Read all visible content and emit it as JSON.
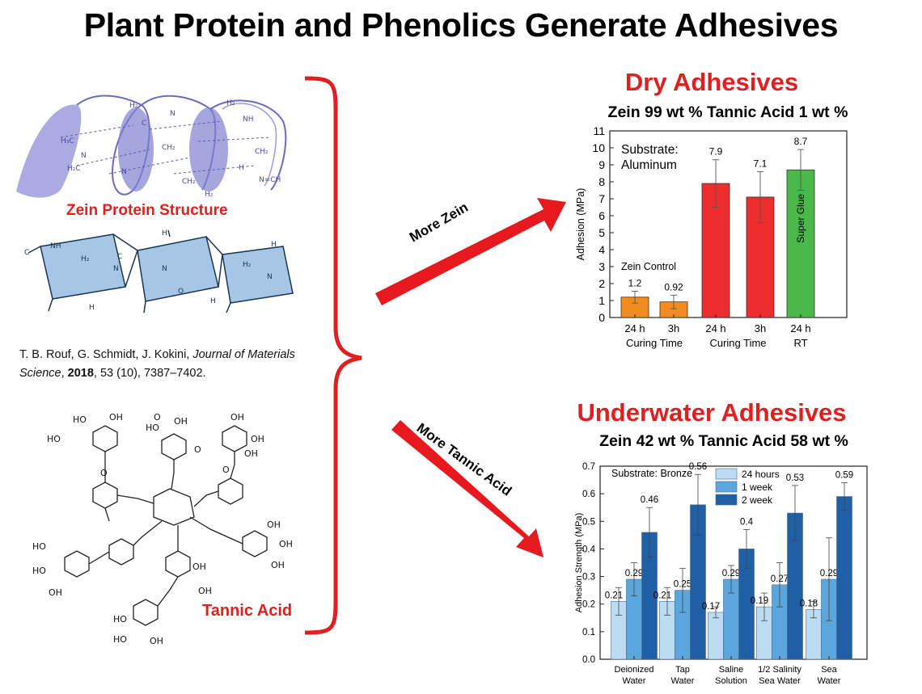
{
  "title": "Plant Protein and Phenolics Generate Adhesives",
  "molecules": {
    "zein_label": "Zein Protein Structure",
    "tannic_label": "Tannic Acid"
  },
  "citation": {
    "authors": "T. B. Rouf, G. Schmidt, J. Kokini, ",
    "journal": "Journal of Materials Science",
    "sep": ", ",
    "year": "2018",
    "rest": ", 53 (10), 7387–7402."
  },
  "arrows": {
    "more_zein": "More Zein",
    "more_tannic": "More Tannic Acid"
  },
  "dry": {
    "title": "Dry Adhesives",
    "subtitle": "Zein 99 wt % Tannic Acid 1 wt %"
  },
  "underwater": {
    "title": "Underwater Adhesives",
    "subtitle": "Zein 42 wt % Tannic Acid 58 wt %"
  },
  "colors": {
    "red": "#e02020",
    "orange": "#f28c1e",
    "chart_red": "#ee2e2e",
    "green": "#4bb84a",
    "light_blue": "#bcdcf4",
    "mid_blue": "#5aa6dd",
    "dark_blue": "#1f5fa6"
  },
  "chart_data": [
    {
      "type": "bar",
      "ylabel": "Adhesion (MPa)",
      "ylim": [
        0,
        11
      ],
      "yticks": [
        0,
        1,
        2,
        3,
        4,
        5,
        6,
        7,
        8,
        9,
        10,
        11
      ],
      "annotation_substrate": "Substrate:\nAluminum",
      "annotation_control": "Zein Control",
      "groups": [
        "Curing Time",
        "Curing Time",
        "RT"
      ],
      "bars": [
        {
          "category": "24 h",
          "value": 1.2,
          "label": "1.2",
          "error": 0.35,
          "color": "#f28c1e",
          "group": 0
        },
        {
          "category": "3h",
          "value": 0.92,
          "label": "0.92",
          "error": 0.4,
          "color": "#f28c1e",
          "group": 0
        },
        {
          "category": "24 h",
          "value": 7.9,
          "label": "7.9",
          "error": 1.4,
          "color": "#ee2e2e",
          "group": 1
        },
        {
          "category": "3h",
          "value": 7.1,
          "label": "7.1",
          "error": 1.5,
          "color": "#ee2e2e",
          "group": 1
        },
        {
          "category": "24 h",
          "value": 8.7,
          "label": "8.7",
          "error": 1.2,
          "color": "#4bb84a",
          "group": 2,
          "inner_label": "Super Glue"
        }
      ]
    },
    {
      "type": "bar",
      "ylabel": "Adhesion Strength (MPa)",
      "ylim": [
        0,
        0.7
      ],
      "yticks": [
        0.0,
        0.1,
        0.2,
        0.3,
        0.4,
        0.5,
        0.6,
        0.7
      ],
      "annotation_substrate": "Substrate: Bronze",
      "categories": [
        "Deionized\nWater",
        "Tap\nWater",
        "Saline\nSolution",
        "1/2 Salinity\nSea Water",
        "Sea\nWater"
      ],
      "series": [
        {
          "name": "24 hours",
          "color": "#bcdcf4",
          "values": [
            0.21,
            0.21,
            0.17,
            0.19,
            0.18
          ],
          "labels": [
            "0.21",
            "0.21",
            "0.17",
            "0.19",
            "0.18"
          ],
          "errors": [
            0.05,
            0.05,
            0.02,
            0.05,
            0.03
          ]
        },
        {
          "name": "1 week",
          "color": "#5aa6dd",
          "values": [
            0.29,
            0.25,
            0.29,
            0.27,
            0.29
          ],
          "labels": [
            "0.29",
            "0.25",
            "0.29",
            "0.27",
            "0.29"
          ],
          "errors": [
            0.06,
            0.08,
            0.05,
            0.08,
            0.15
          ]
        },
        {
          "name": "2 week",
          "color": "#1f5fa6",
          "values": [
            0.46,
            0.56,
            0.4,
            0.53,
            0.59
          ],
          "labels": [
            "0.46",
            "0.56",
            "0.4",
            "0.53",
            "0.59"
          ],
          "errors": [
            0.09,
            0.11,
            0.07,
            0.1,
            0.05
          ]
        }
      ]
    }
  ]
}
